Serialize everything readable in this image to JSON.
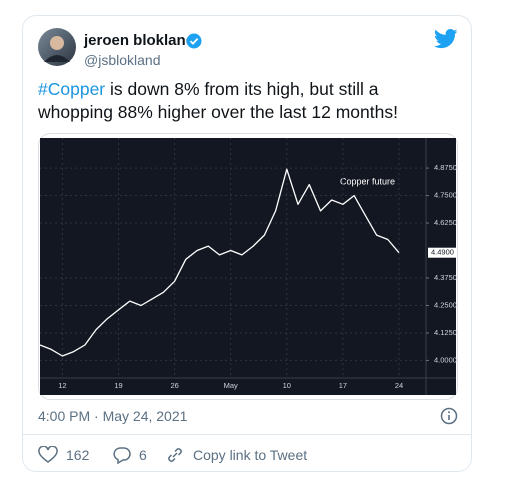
{
  "tweet": {
    "author_name": "jeroen blokland",
    "handle": "@jsblokland",
    "hashtag": "#Copper",
    "text": "is down 8% from its high, but still a whopping 88% higher over the last 12 months!",
    "timestamp": "4:00 PM · May 24, 2021",
    "likes": 162,
    "replies": 6,
    "copy_link": "Copy link to Tweet"
  },
  "chart_data": {
    "type": "line",
    "annotation": "Copper future",
    "color": "#ffffff",
    "categories": [
      null,
      null,
      "12",
      null,
      null,
      null,
      null,
      "19",
      null,
      null,
      null,
      null,
      "26",
      null,
      null,
      null,
      null,
      "May",
      null,
      null,
      null,
      null,
      "10",
      null,
      null,
      null,
      null,
      "17",
      null,
      null,
      null,
      null,
      "24"
    ],
    "values": [
      4.07,
      4.05,
      4.02,
      4.04,
      4.07,
      4.14,
      4.19,
      4.23,
      4.27,
      4.25,
      4.28,
      4.31,
      4.36,
      4.46,
      4.5,
      4.52,
      4.48,
      4.5,
      4.48,
      4.52,
      4.57,
      4.68,
      4.87,
      4.71,
      4.8,
      4.68,
      4.73,
      4.71,
      4.75,
      4.66,
      4.57,
      4.55,
      4.49
    ],
    "last_price": {
      "value": 4.49,
      "label": "4.4900"
    },
    "ylim": [
      3.92,
      4.98
    ],
    "yticks": [
      {
        "value": 4.0,
        "label": "4.0000"
      },
      {
        "value": 4.125,
        "label": "4.1250"
      },
      {
        "value": 4.25,
        "label": "4.2500"
      },
      {
        "value": 4.375,
        "label": "4.3750"
      },
      {
        "value": 4.625,
        "label": "4.6250"
      },
      {
        "value": 4.75,
        "label": "4.7500"
      },
      {
        "value": 4.875,
        "label": "4.8750"
      }
    ],
    "grid": true
  }
}
